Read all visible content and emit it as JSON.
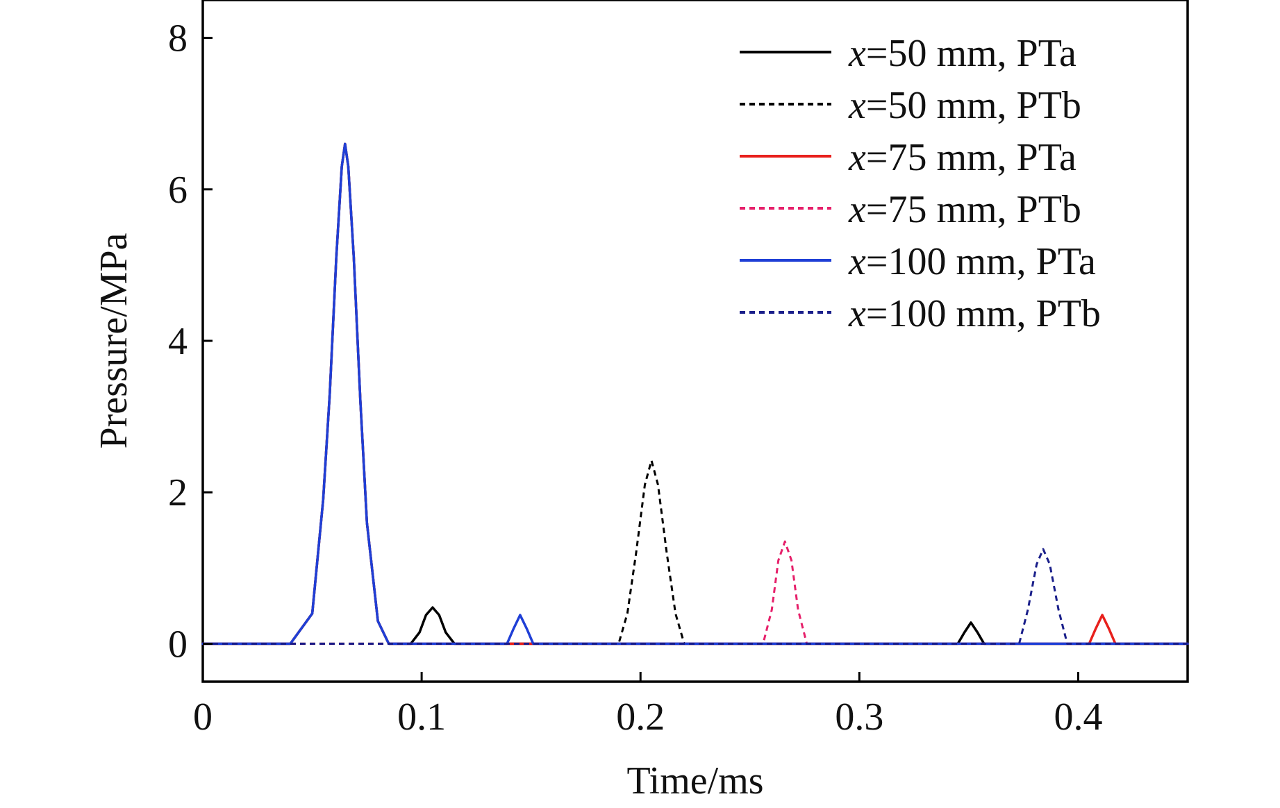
{
  "chart_data": {
    "type": "line",
    "title": "",
    "xlabel": "Time/ms",
    "ylabel": "Pressure/MPa",
    "xlim": [
      0,
      0.45
    ],
    "ylim": [
      -0.5,
      8.5
    ],
    "x_ticks": [
      0,
      0.1,
      0.2,
      0.3,
      0.4
    ],
    "x_tick_labels": [
      "0",
      "0.1",
      "0.2",
      "0.3",
      "0.4"
    ],
    "y_ticks": [
      0,
      2,
      4,
      6,
      8
    ],
    "y_tick_labels": [
      "0",
      "2",
      "4",
      "6",
      "8"
    ],
    "grid": false,
    "legend_position": "top-right",
    "series": [
      {
        "name": "x=50 mm, PTa",
        "label_var": "x",
        "label_rest": "=50 mm, PTa",
        "color": "#000000",
        "style": "solid",
        "x": [
          0,
          0.04,
          0.05,
          0.055,
          0.058,
          0.061,
          0.0635,
          0.065,
          0.0665,
          0.069,
          0.072,
          0.075,
          0.08,
          0.085,
          0.095,
          0.099,
          0.102,
          0.105,
          0.108,
          0.111,
          0.115,
          0.345,
          0.348,
          0.351,
          0.354,
          0.357,
          0.45
        ],
        "y": [
          0,
          0,
          0.4,
          1.9,
          3.3,
          5.1,
          6.3,
          6.6,
          6.3,
          5.1,
          3.2,
          1.6,
          0.3,
          0,
          0,
          0.15,
          0.38,
          0.48,
          0.38,
          0.15,
          0,
          0,
          0.15,
          0.28,
          0.15,
          0,
          0
        ]
      },
      {
        "name": "x=50 mm, PTb",
        "label_var": "x",
        "label_rest": "=50 mm, PTb",
        "color": "#000000",
        "style": "dashed",
        "x": [
          0,
          0.19,
          0.194,
          0.198,
          0.202,
          0.205,
          0.208,
          0.212,
          0.216,
          0.22,
          0.45
        ],
        "y": [
          0,
          0,
          0.4,
          1.2,
          2.1,
          2.42,
          2.1,
          1.2,
          0.4,
          0,
          0
        ]
      },
      {
        "name": "x=75 mm, PTa",
        "label_var": "x",
        "label_rest": "=75 mm, PTa",
        "color": "#e8201c",
        "style": "solid",
        "x": [
          0,
          0.04,
          0.05,
          0.055,
          0.058,
          0.061,
          0.0635,
          0.065,
          0.0665,
          0.069,
          0.072,
          0.075,
          0.08,
          0.085,
          0.405,
          0.408,
          0.411,
          0.414,
          0.417,
          0.45
        ],
        "y": [
          0,
          0,
          0.4,
          1.9,
          3.3,
          5.1,
          6.3,
          6.6,
          6.3,
          5.1,
          3.2,
          1.6,
          0.3,
          0,
          0,
          0.2,
          0.38,
          0.2,
          0,
          0
        ]
      },
      {
        "name": "x=75 mm, PTb",
        "label_var": "x",
        "label_rest": "=75 mm, PTb",
        "color": "#e6206a",
        "style": "dashed",
        "x": [
          0,
          0.256,
          0.26,
          0.263,
          0.266,
          0.269,
          0.272,
          0.276,
          0.45
        ],
        "y": [
          0,
          0,
          0.45,
          1.1,
          1.35,
          1.1,
          0.45,
          0,
          0
        ]
      },
      {
        "name": "x=100 mm, PTa",
        "label_var": "x",
        "label_rest": "=100 mm, PTa",
        "color": "#1f3fd6",
        "style": "solid",
        "x": [
          0,
          0.04,
          0.05,
          0.055,
          0.058,
          0.061,
          0.0635,
          0.065,
          0.0665,
          0.069,
          0.072,
          0.075,
          0.08,
          0.085,
          0.139,
          0.142,
          0.145,
          0.148,
          0.151,
          0.45
        ],
        "y": [
          0,
          0,
          0.4,
          1.9,
          3.3,
          5.1,
          6.3,
          6.6,
          6.3,
          5.1,
          3.2,
          1.6,
          0.3,
          0,
          0,
          0.2,
          0.38,
          0.2,
          0,
          0
        ]
      },
      {
        "name": "x=100 mm, PTb",
        "label_var": "x",
        "label_rest": "=100 mm, PTb",
        "color": "#1a1f8a",
        "style": "dashed",
        "x": [
          0,
          0.373,
          0.377,
          0.381,
          0.384,
          0.387,
          0.391,
          0.395,
          0.45
        ],
        "y": [
          0,
          0,
          0.45,
          1.05,
          1.25,
          1.05,
          0.45,
          0,
          0
        ]
      }
    ]
  }
}
